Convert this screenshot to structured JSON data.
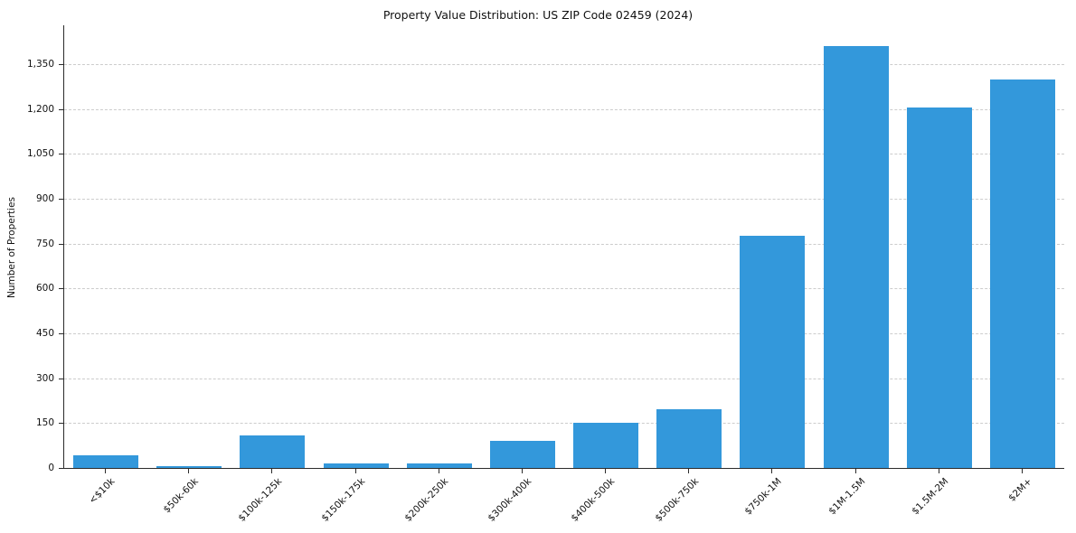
{
  "chart_data": {
    "type": "bar",
    "title": "Property Value Distribution: US ZIP Code 02459 (2024)",
    "ylabel": "Number of Properties",
    "xlabel": "",
    "categories": [
      "<$10k",
      "$50k-60k",
      "$100k-125k",
      "$150k-175k",
      "$200k-250k",
      "$300k-400k",
      "$400k-500k",
      "$500k-750k",
      "$750k-1M",
      "$1M-1.5M",
      "$1.5M-2M",
      "$2M+"
    ],
    "values": [
      42,
      6,
      110,
      14,
      16,
      90,
      152,
      195,
      775,
      1410,
      1205,
      1300
    ],
    "yticks": [
      {
        "value": 0,
        "label": "0"
      },
      {
        "value": 150,
        "label": "150"
      },
      {
        "value": 300,
        "label": "300"
      },
      {
        "value": 450,
        "label": "450"
      },
      {
        "value": 600,
        "label": "600"
      },
      {
        "value": 750,
        "label": "750"
      },
      {
        "value": 900,
        "label": "900"
      },
      {
        "value": 1050,
        "label": "1,050"
      },
      {
        "value": 1200,
        "label": "1,200"
      },
      {
        "value": 1350,
        "label": "1,350"
      }
    ],
    "ylim": [
      0,
      1480
    ],
    "bar_color": "#3398db",
    "grid": "horizontal-dashed",
    "legend": "none"
  }
}
